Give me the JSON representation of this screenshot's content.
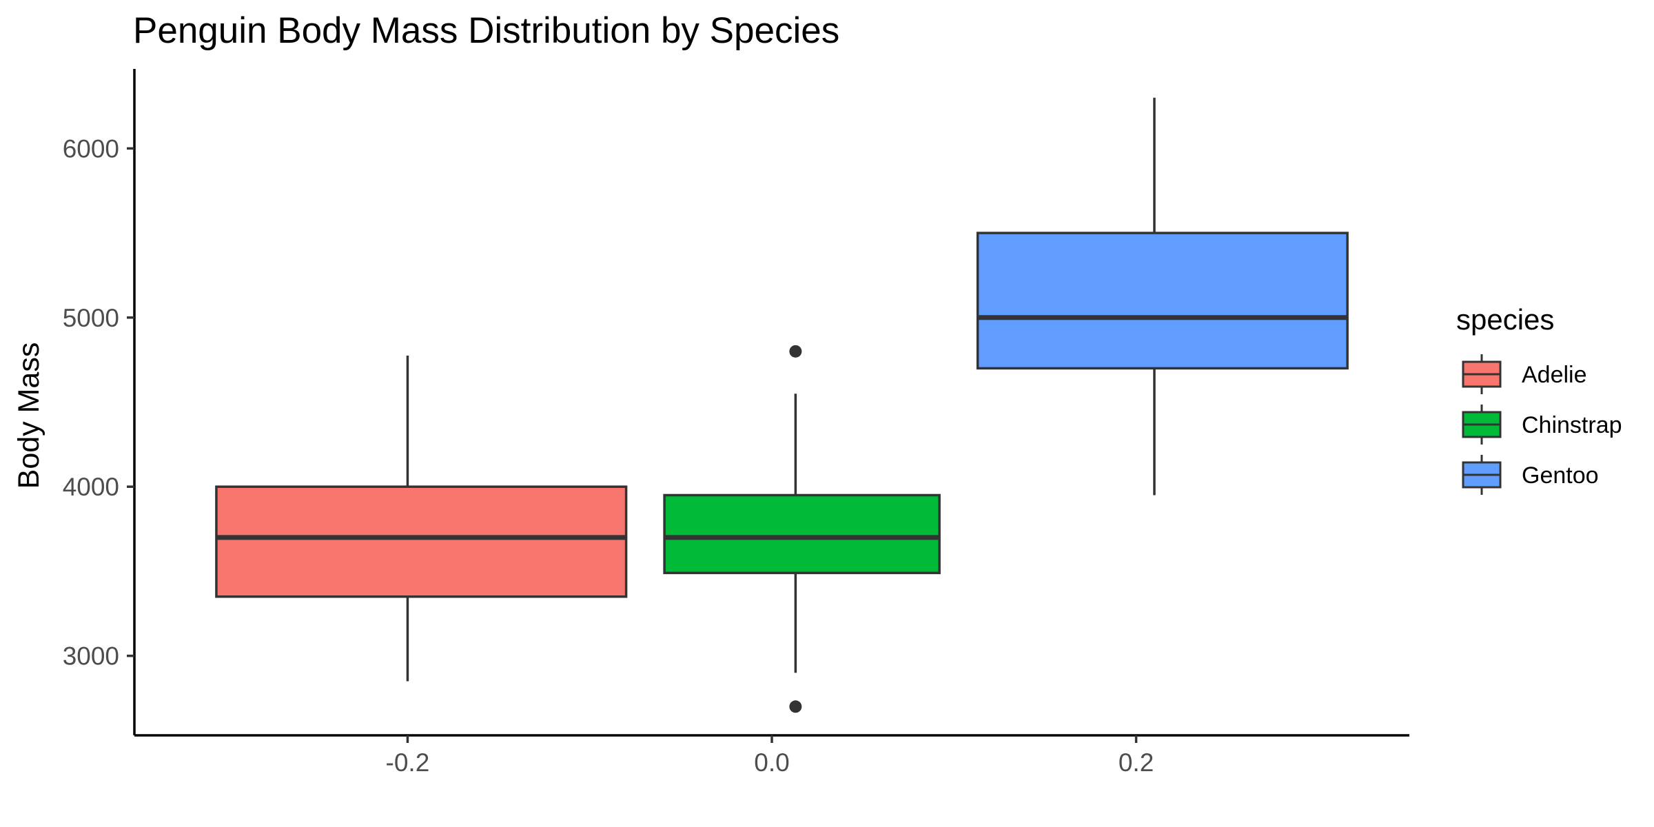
{
  "chart_data": {
    "type": "box",
    "title": "Penguin Body Mass Distribution by Species",
    "xlabel": "",
    "ylabel": "Body Mass",
    "x_ticks": [
      "-0.2",
      "0.0",
      "0.2"
    ],
    "y_ticks": [
      "3000",
      "4000",
      "5000",
      "6000"
    ],
    "xlim": [
      -0.35,
      0.35
    ],
    "ylim": [
      2530,
      6470
    ],
    "grid": false,
    "legend": {
      "title": "species",
      "placement": "right"
    },
    "series": [
      {
        "name": "Adelie",
        "color": "#F8766D",
        "x_min": -0.305,
        "x_max": -0.08,
        "x_center": -0.2,
        "whisker_low": 2850,
        "q1": 3350,
        "median": 3700,
        "q3": 4000,
        "whisker_high": 4775,
        "outliers": []
      },
      {
        "name": "Chinstrap",
        "color": "#00BA38",
        "x_min": -0.059,
        "x_max": 0.092,
        "x_center": 0.013,
        "whisker_low": 2900,
        "q1": 3490,
        "median": 3700,
        "q3": 3950,
        "whisker_high": 4550,
        "outliers": [
          4800,
          2700
        ]
      },
      {
        "name": "Gentoo",
        "color": "#619CFF",
        "x_min": 0.113,
        "x_max": 0.316,
        "x_center": 0.21,
        "whisker_low": 3950,
        "q1": 4700,
        "median": 5000,
        "q3": 5500,
        "whisker_high": 6300,
        "outliers": []
      }
    ]
  }
}
